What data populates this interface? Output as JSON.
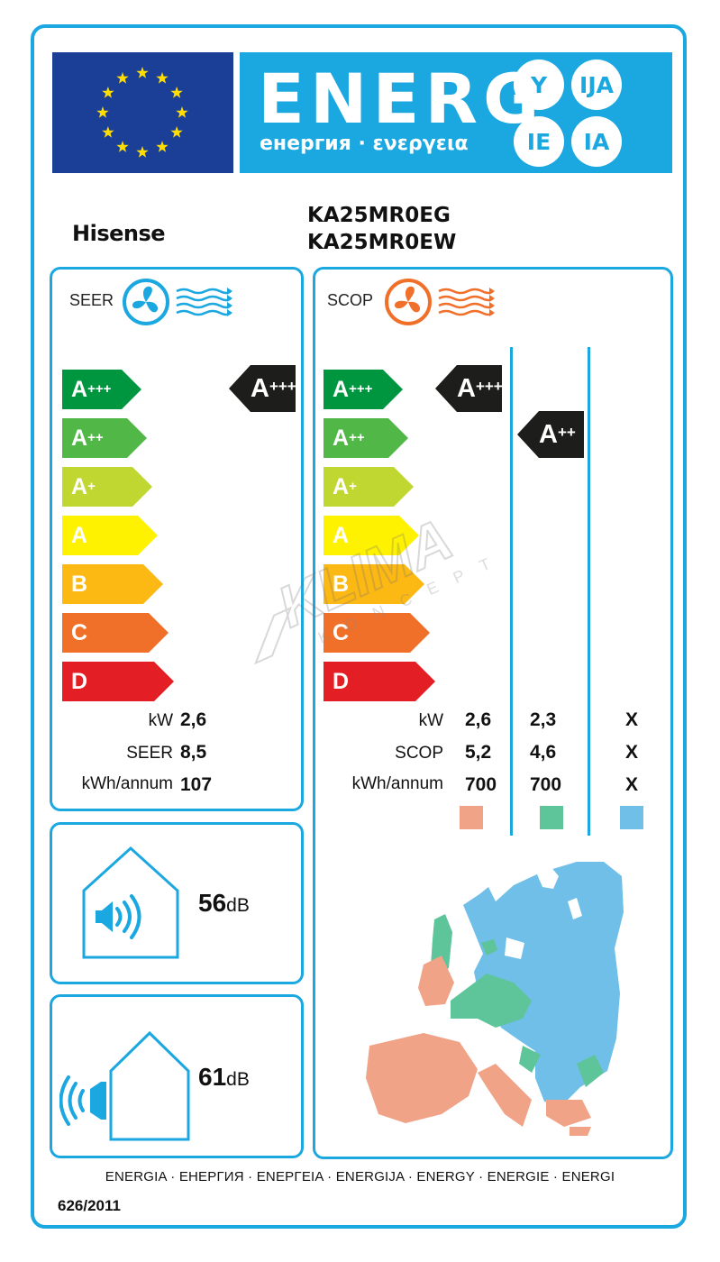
{
  "header": {
    "energ_word": "ENERG",
    "energ_sub": "енергия · ενεργεια",
    "suffixes": [
      "Y",
      "IJA",
      "IE",
      "IA"
    ]
  },
  "brand": "Hisense",
  "models": [
    "KA25MR0EG",
    "KA25MR0EW"
  ],
  "cooling": {
    "label": "SEER",
    "scale": [
      "A+++",
      "A++",
      "A+",
      "A",
      "B",
      "C",
      "D"
    ],
    "class": "A+++",
    "rows": [
      {
        "label": "kW",
        "value": "2,6"
      },
      {
        "label": "SEER",
        "value": "8,5"
      },
      {
        "label": "kWh/annum",
        "value": "107"
      }
    ]
  },
  "heating": {
    "label": "SCOP",
    "scale": [
      "A+++",
      "A++",
      "A+",
      "A",
      "B",
      "C",
      "D"
    ],
    "classes": [
      "A+++",
      "A++"
    ],
    "rows": [
      {
        "label": "kW",
        "values": [
          "2,6",
          "2,3",
          "X"
        ]
      },
      {
        "label": "SCOP",
        "values": [
          "5,2",
          "4,6",
          "X"
        ]
      },
      {
        "label": "kWh/annum",
        "values": [
          "700",
          "700",
          "X"
        ]
      }
    ],
    "zone_colors": [
      "#f0a387",
      "#5ec49a",
      "#6fbfe8"
    ]
  },
  "noise": {
    "indoor": {
      "value": "56",
      "unit": "dB"
    },
    "outdoor": {
      "value": "61",
      "unit": "dB"
    }
  },
  "footer": {
    "languages": "ENERGIA · ЕНЕРГИЯ · ΕΝΕΡΓΕΙΑ · ENERGIJA · ENERGY · ENERGIE · ENERGI",
    "regulation": "626/2011"
  },
  "watermark": "KLIMA KONCEPT",
  "colors": {
    "frame": "#1ba7e0",
    "eu_flag": "#1b3f97",
    "star": "#ffdd00",
    "scale": [
      "#00963f",
      "#51b848",
      "#bfd730",
      "#fff200",
      "#fcb813",
      "#f0702a",
      "#e31e24"
    ],
    "indicator": "#1d1d1b"
  }
}
